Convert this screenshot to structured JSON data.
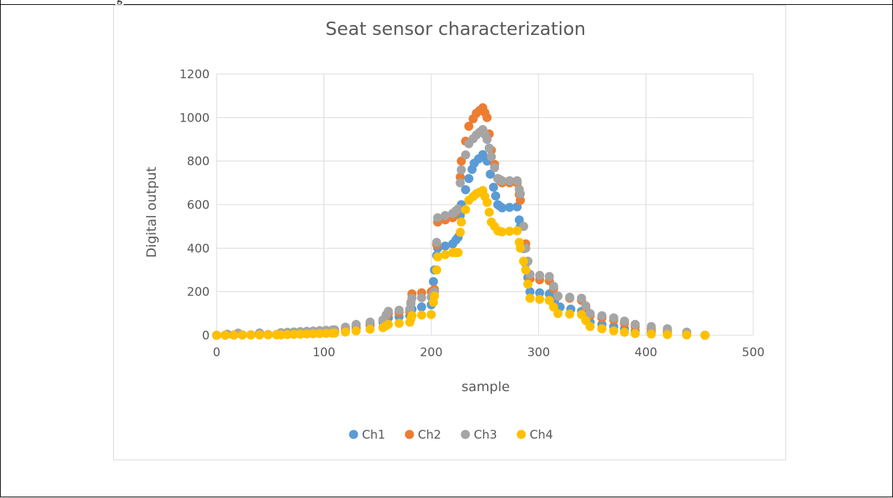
{
  "page": {
    "top_fragment": "g"
  },
  "chart_data": {
    "type": "scatter",
    "title": "Seat sensor characterization",
    "xlabel": "sample",
    "ylabel": "Digital output",
    "xlim": [
      0,
      500
    ],
    "ylim": [
      0,
      1200
    ],
    "x_ticks": [
      "0",
      "100",
      "200",
      "300",
      "400",
      "500"
    ],
    "y_ticks": [
      "0",
      "200",
      "400",
      "600",
      "800",
      "1000",
      "1200"
    ],
    "grid": true,
    "legend_position": "bottom",
    "series": [
      {
        "name": "Ch1",
        "color": "#5b9bd5",
        "keypoints": [
          [
            0,
            0
          ],
          [
            60,
            3
          ],
          [
            110,
            15
          ],
          [
            130,
            30
          ],
          [
            155,
            60
          ],
          [
            160,
            80
          ],
          [
            180,
            90
          ],
          [
            182,
            120
          ],
          [
            200,
            140
          ],
          [
            203,
            300
          ],
          [
            206,
            400
          ],
          [
            220,
            420
          ],
          [
            225,
            450
          ],
          [
            228,
            600
          ],
          [
            235,
            720
          ],
          [
            240,
            790
          ],
          [
            248,
            830
          ],
          [
            252,
            800
          ],
          [
            258,
            680
          ],
          [
            262,
            600
          ],
          [
            266,
            585
          ],
          [
            280,
            590
          ],
          [
            283,
            500
          ],
          [
            288,
            330
          ],
          [
            292,
            200
          ],
          [
            310,
            190
          ],
          [
            320,
            130
          ],
          [
            340,
            110
          ],
          [
            348,
            60
          ],
          [
            370,
            40
          ],
          [
            390,
            20
          ],
          [
            420,
            8
          ],
          [
            455,
            0
          ]
        ]
      },
      {
        "name": "Ch2",
        "color": "#ed7d31",
        "keypoints": [
          [
            0,
            0
          ],
          [
            60,
            4
          ],
          [
            110,
            20
          ],
          [
            130,
            40
          ],
          [
            155,
            70
          ],
          [
            160,
            100
          ],
          [
            180,
            110
          ],
          [
            182,
            190
          ],
          [
            200,
            200
          ],
          [
            203,
            210
          ],
          [
            206,
            520
          ],
          [
            220,
            540
          ],
          [
            225,
            580
          ],
          [
            228,
            800
          ],
          [
            235,
            960
          ],
          [
            242,
            1020
          ],
          [
            248,
            1045
          ],
          [
            252,
            1000
          ],
          [
            256,
            850
          ],
          [
            262,
            720
          ],
          [
            266,
            700
          ],
          [
            280,
            700
          ],
          [
            283,
            620
          ],
          [
            288,
            420
          ],
          [
            292,
            260
          ],
          [
            310,
            250
          ],
          [
            318,
            180
          ],
          [
            340,
            160
          ],
          [
            348,
            90
          ],
          [
            370,
            70
          ],
          [
            390,
            40
          ],
          [
            420,
            20
          ],
          [
            455,
            0
          ]
        ]
      },
      {
        "name": "Ch3",
        "color": "#a5a5a5",
        "keypoints": [
          [
            0,
            0
          ],
          [
            20,
            10
          ],
          [
            60,
            12
          ],
          [
            110,
            25
          ],
          [
            130,
            50
          ],
          [
            155,
            70
          ],
          [
            160,
            110
          ],
          [
            180,
            120
          ],
          [
            182,
            170
          ],
          [
            200,
            175
          ],
          [
            203,
            200
          ],
          [
            206,
            540
          ],
          [
            220,
            560
          ],
          [
            225,
            580
          ],
          [
            228,
            760
          ],
          [
            235,
            880
          ],
          [
            242,
            920
          ],
          [
            248,
            945
          ],
          [
            252,
            900
          ],
          [
            256,
            820
          ],
          [
            262,
            720
          ],
          [
            266,
            710
          ],
          [
            280,
            710
          ],
          [
            283,
            650
          ],
          [
            288,
            400
          ],
          [
            292,
            280
          ],
          [
            310,
            270
          ],
          [
            318,
            180
          ],
          [
            340,
            170
          ],
          [
            348,
            100
          ],
          [
            370,
            80
          ],
          [
            390,
            50
          ],
          [
            420,
            30
          ],
          [
            455,
            0
          ]
        ]
      },
      {
        "name": "Ch4",
        "color": "#ffc000",
        "keypoints": [
          [
            0,
            0
          ],
          [
            60,
            2
          ],
          [
            110,
            10
          ],
          [
            130,
            20
          ],
          [
            155,
            35
          ],
          [
            160,
            50
          ],
          [
            180,
            60
          ],
          [
            182,
            90
          ],
          [
            200,
            95
          ],
          [
            203,
            180
          ],
          [
            206,
            360
          ],
          [
            220,
            380
          ],
          [
            225,
            380
          ],
          [
            228,
            520
          ],
          [
            235,
            620
          ],
          [
            242,
            650
          ],
          [
            248,
            665
          ],
          [
            252,
            610
          ],
          [
            256,
            520
          ],
          [
            262,
            480
          ],
          [
            266,
            475
          ],
          [
            280,
            480
          ],
          [
            283,
            400
          ],
          [
            288,
            300
          ],
          [
            292,
            170
          ],
          [
            310,
            160
          ],
          [
            318,
            100
          ],
          [
            340,
            95
          ],
          [
            348,
            40
          ],
          [
            370,
            20
          ],
          [
            390,
            8
          ],
          [
            420,
            3
          ],
          [
            455,
            0
          ]
        ]
      }
    ]
  }
}
